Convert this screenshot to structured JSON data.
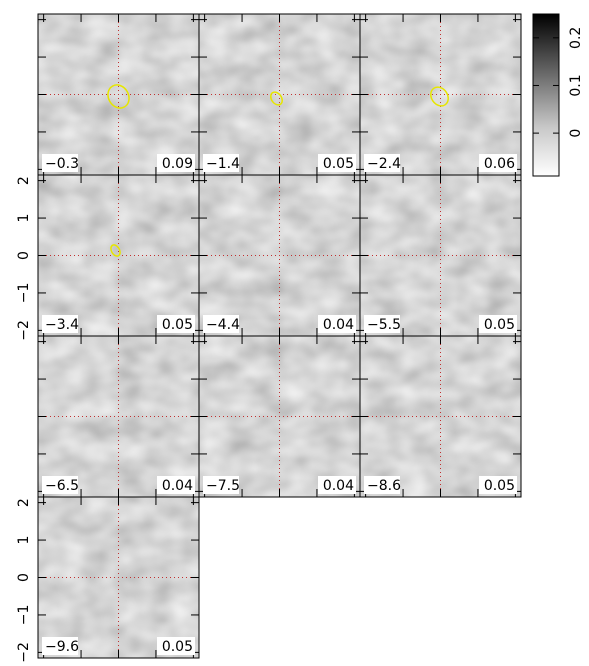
{
  "chart_data": {
    "type": "heatmap",
    "xlim": [
      -2.15,
      2.15
    ],
    "ylim": [
      -2.15,
      2.15
    ],
    "xticks": [
      -2,
      -1,
      0,
      1,
      2
    ],
    "yticks": [
      {
        "value": -2,
        "label": "−2"
      },
      {
        "value": -1,
        "label": "−1"
      },
      0,
      1,
      2
    ],
    "velocities": [
      -0.3,
      -1.4,
      -2.4,
      -3.4,
      -4.4,
      -5.5,
      -6.5,
      -7.5,
      -8.6,
      -9.6
    ],
    "velocity_labels": [
      "−0.3",
      "−1.4",
      "−2.4",
      "−3.4",
      "−4.4",
      "−5.5",
      "−6.5",
      "−7.5",
      "−8.6",
      "−9.6"
    ],
    "peaks": [
      0.09,
      0.05,
      0.06,
      0.05,
      0.04,
      0.05,
      0.04,
      0.04,
      0.05,
      0.05
    ],
    "colorbar": {
      "lim": [
        -0.09,
        0.25
      ],
      "ticks": [
        0,
        0.1,
        0.2
      ]
    },
    "contour_color": "#e6e600",
    "crosshair_color": "#c03030"
  }
}
